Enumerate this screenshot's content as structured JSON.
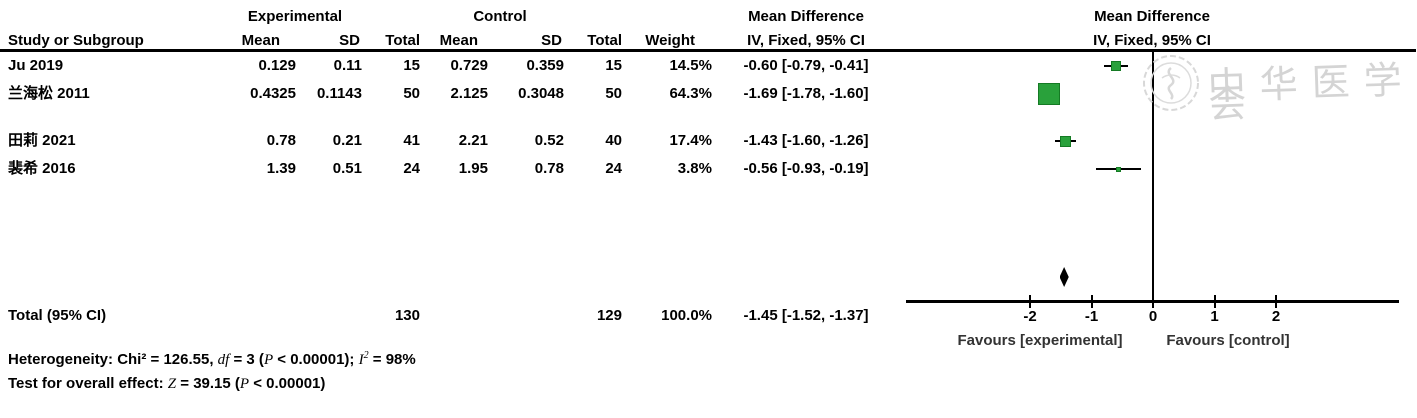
{
  "header": {
    "group_experimental": "Experimental",
    "group_control": "Control",
    "md_left": "Mean Difference",
    "md_right": "Mean Difference",
    "col_study": "Study or Subgroup",
    "col_mean": "Mean",
    "col_sd": "SD",
    "col_total": "Total",
    "col_weight": "Weight",
    "col_ci": "IV, Fixed, 95% CI"
  },
  "chart_data": {
    "type": "forest",
    "effect_measure": "Mean Difference",
    "method": "IV, Fixed, 95% CI",
    "xlim": [
      -4,
      4
    ],
    "ticks": [
      -2,
      -1,
      0,
      1,
      2
    ],
    "zero_line": 0,
    "favours_left": "Favours [experimental]",
    "favours_right": "Favours [control]",
    "studies": [
      {
        "label": "Ju 2019",
        "mean_e": "0.129",
        "sd_e": "0.11",
        "total_e": "15",
        "mean_c": "0.729",
        "sd_c": "0.359",
        "total_c": "15",
        "weight": "14.5%",
        "weight_pct": 14.5,
        "md": -0.6,
        "ci_low": -0.79,
        "ci_high": -0.41,
        "ci_text": "-0.60 [-0.79, -0.41]"
      },
      {
        "label": "兰海松 2011",
        "mean_e": "0.4325",
        "sd_e": "0.1143",
        "total_e": "50",
        "mean_c": "2.125",
        "sd_c": "0.3048",
        "total_c": "50",
        "weight": "64.3%",
        "weight_pct": 64.3,
        "md": -1.69,
        "ci_low": -1.78,
        "ci_high": -1.6,
        "ci_text": "-1.69 [-1.78, -1.60]"
      },
      {
        "label": "田莉 2021",
        "mean_e": "0.78",
        "sd_e": "0.21",
        "total_e": "41",
        "mean_c": "2.21",
        "sd_c": "0.52",
        "total_c": "40",
        "weight": "17.4%",
        "weight_pct": 17.4,
        "md": -1.43,
        "ci_low": -1.6,
        "ci_high": -1.26,
        "ci_text": "-1.43 [-1.60, -1.26]"
      },
      {
        "label": "裴希 2016",
        "mean_e": "1.39",
        "sd_e": "0.51",
        "total_e": "24",
        "mean_c": "1.95",
        "sd_c": "0.78",
        "total_c": "24",
        "weight": "3.8%",
        "weight_pct": 3.8,
        "md": -0.56,
        "ci_low": -0.93,
        "ci_high": -0.19,
        "ci_text": "-0.56 [-0.93, -0.19]"
      }
    ],
    "total": {
      "label": "Total (95% CI)",
      "total_e": "130",
      "total_c": "129",
      "weight": "100.0%",
      "md": -1.45,
      "ci_low": -1.52,
      "ci_high": -1.37,
      "ci_text": "-1.45 [-1.52, -1.37]"
    }
  },
  "footer": {
    "heterogeneity_segments": [
      {
        "t": "Heterogeneity: Chi² = 126.55, ",
        "s": "n"
      },
      {
        "t": "df",
        "s": "i"
      },
      {
        "t": " = 3 (",
        "s": "n"
      },
      {
        "t": "P",
        "s": "i"
      },
      {
        "t": " < 0.00001); ",
        "s": "n"
      },
      {
        "t": "I",
        "s": "i"
      },
      {
        "t": "2",
        "s": "sup"
      },
      {
        "t": " = 98%",
        "s": "n"
      }
    ],
    "test_segments": [
      {
        "t": "Test for overall effect: ",
        "s": "n"
      },
      {
        "t": "Z",
        "s": "i"
      },
      {
        "t": " = 39.15 (",
        "s": "n"
      },
      {
        "t": "P",
        "s": "i"
      },
      {
        "t": " < 0.00001)",
        "s": "n"
      }
    ]
  },
  "watermark": {
    "text": "中华医学会"
  },
  "colors": {
    "marker_fill": "#29a13b",
    "marker_border": "#157a24",
    "watermark_gray": "#d4d4d4"
  }
}
